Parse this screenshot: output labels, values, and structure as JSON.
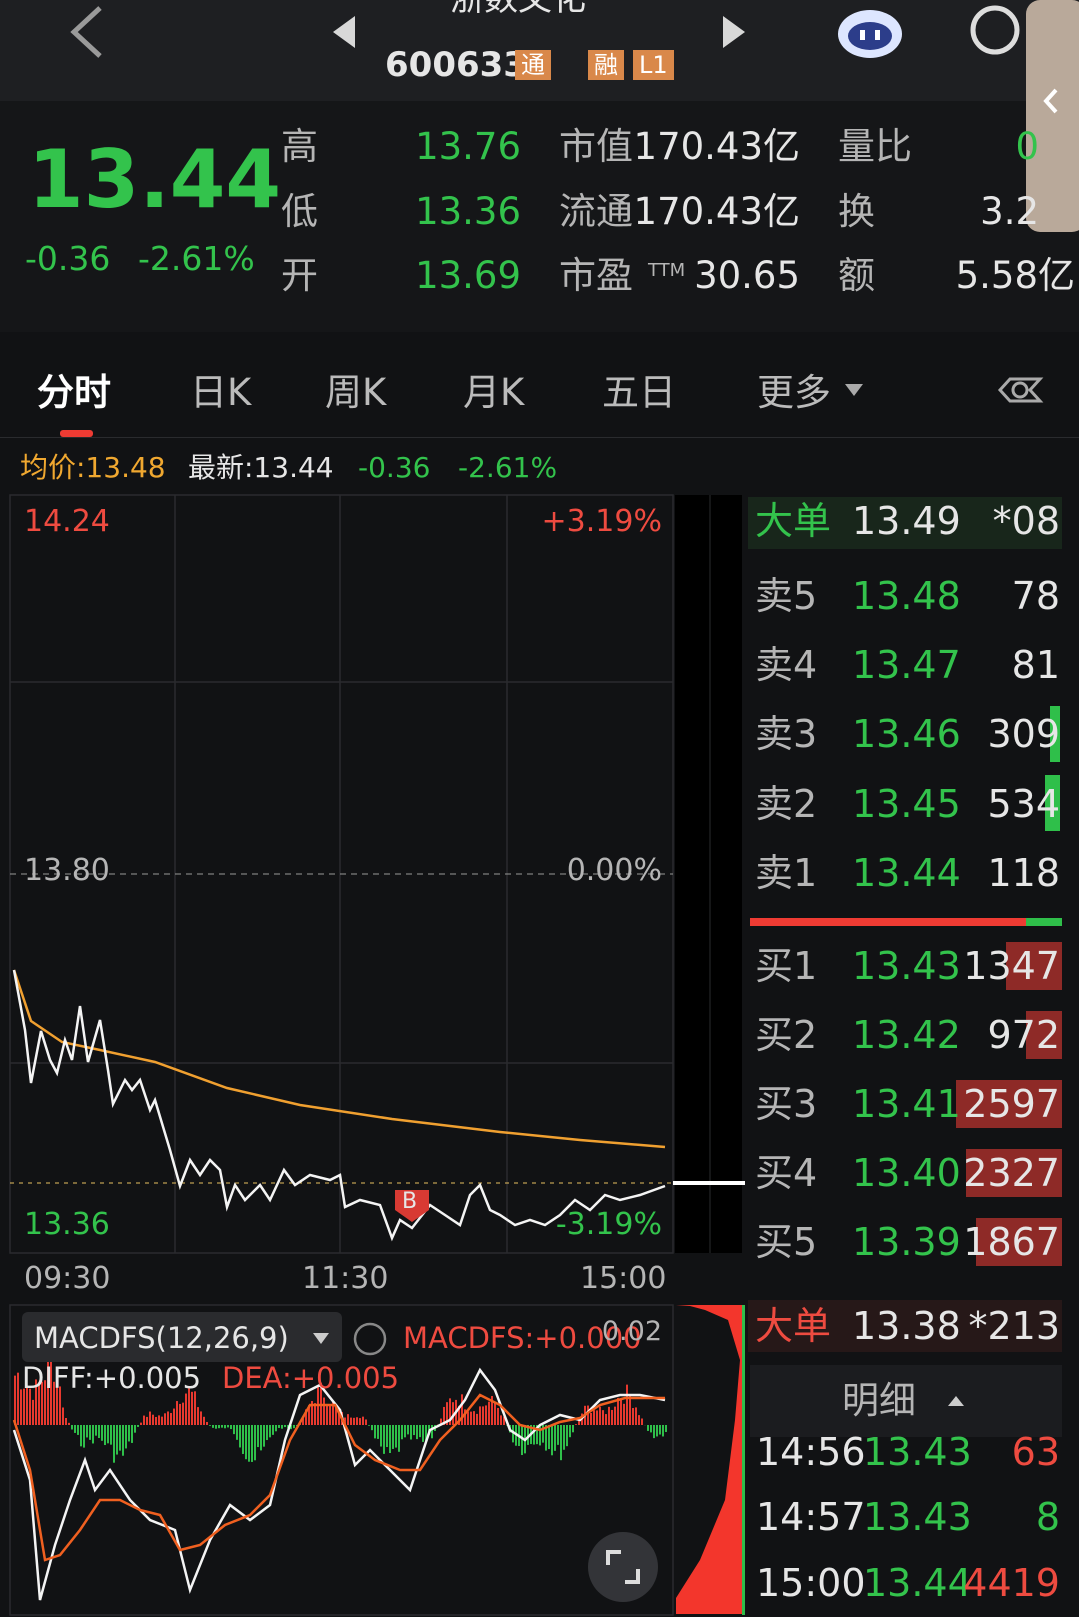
{
  "header": {
    "name": "浙数文化",
    "code": "600633",
    "badges": [
      "通",
      "融",
      "L1"
    ]
  },
  "quote": {
    "price": "13.44",
    "change": "-0.36",
    "change_pct": "-2.61%",
    "stats": [
      [
        "高",
        "13.76",
        "市值",
        "170.43亿",
        "量比",
        "0"
      ],
      [
        "低",
        "13.36",
        "流通",
        "170.43亿",
        "换",
        "3.2"
      ],
      [
        "开",
        "13.69",
        "市盈",
        "30.65",
        "额",
        "5.58亿"
      ]
    ],
    "ttm": "TTM"
  },
  "tabs": [
    "分时",
    "日K",
    "周K",
    "月K",
    "五日",
    "更多"
  ],
  "info": {
    "avg": "均价:13.48",
    "latest": "最新:13.44",
    "change": "-0.36",
    "change_pct": "-2.61%"
  },
  "chart": {
    "top_price": "14.24",
    "top_pct": "+3.19%",
    "mid_price": "13.80",
    "mid_pct": "0.00%",
    "bottom_price": "13.36",
    "bottom_pct": "-3.19%",
    "times": [
      "09:30",
      "11:30",
      "15:00"
    ],
    "marker": "B"
  },
  "macd": {
    "name": "MACDFS(12,26,9)",
    "value": "MACDFS:+0.000",
    "scale": "0.02",
    "diff": "DIFF:+0.005",
    "dea": "DEA:+0.005"
  },
  "order_book": {
    "big_top": {
      "label": "大单",
      "price": "13.49",
      "volume": "*08"
    },
    "sells": [
      [
        "卖5",
        "13.48",
        "78"
      ],
      [
        "卖4",
        "13.47",
        "81"
      ],
      [
        "卖3",
        "13.46",
        "309"
      ],
      [
        "卖2",
        "13.45",
        "534"
      ],
      [
        "卖1",
        "13.44",
        "118"
      ]
    ],
    "buys": [
      [
        "买1",
        "13.43",
        "1347"
      ],
      [
        "买2",
        "13.42",
        "972"
      ],
      [
        "买3",
        "13.41",
        "2597"
      ],
      [
        "买4",
        "13.40",
        "2327"
      ],
      [
        "买5",
        "13.39",
        "1867"
      ]
    ],
    "big_bottom": {
      "label": "大单",
      "price": "13.38",
      "volume": "*213"
    }
  },
  "details": {
    "title": "明细",
    "trades": [
      [
        "14:56",
        "13.43",
        "63"
      ],
      [
        "14:57",
        "13.43",
        "8"
      ],
      [
        "15:00",
        "13.44",
        "4419"
      ]
    ]
  }
}
